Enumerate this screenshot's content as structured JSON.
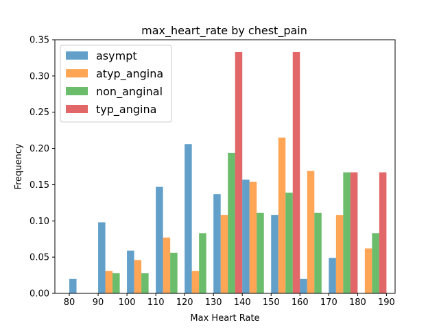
{
  "chart_data": {
    "type": "bar",
    "title": "max_heart_rate by chest_pain",
    "xlabel": "Max Heart Rate",
    "ylabel": "Frequency",
    "xlim": [
      75,
      193
    ],
    "ylim": [
      0,
      0.35
    ],
    "xticks": [
      80,
      90,
      100,
      110,
      120,
      130,
      140,
      150,
      160,
      170,
      180,
      190
    ],
    "yticks": [
      0.0,
      0.05,
      0.1,
      0.15,
      0.2,
      0.25,
      0.3,
      0.35
    ],
    "ytick_labels": [
      "0.00",
      "0.05",
      "0.10",
      "0.15",
      "0.20",
      "0.25",
      "0.30",
      "0.35"
    ],
    "bins": [
      [
        80,
        90
      ],
      [
        90,
        100
      ],
      [
        100,
        110
      ],
      [
        110,
        120
      ],
      [
        120,
        130
      ],
      [
        130,
        140
      ],
      [
        140,
        150
      ],
      [
        150,
        160
      ],
      [
        160,
        170
      ],
      [
        170,
        180
      ],
      [
        180,
        190
      ]
    ],
    "series": [
      {
        "name": "asympt",
        "color": "#1f77b4",
        "values": [
          0.02,
          0.098,
          0.059,
          0.147,
          0.206,
          0.137,
          0.157,
          0.108,
          0.02,
          0.049,
          0.0
        ]
      },
      {
        "name": "atyp_angina",
        "color": "#ff7f0e",
        "values": [
          0.0,
          0.031,
          0.046,
          0.077,
          0.031,
          0.108,
          0.154,
          0.215,
          0.169,
          0.108,
          0.062
        ]
      },
      {
        "name": "non_anginal",
        "color": "#2ca02c",
        "values": [
          0.0,
          0.028,
          0.028,
          0.056,
          0.083,
          0.194,
          0.111,
          0.139,
          0.111,
          0.167,
          0.083
        ]
      },
      {
        "name": "typ_angina",
        "color": "#d62728",
        "values": [
          0.0,
          0.0,
          0.0,
          0.0,
          0.0,
          0.333,
          0.0,
          0.333,
          0.0,
          0.167,
          0.167
        ]
      }
    ],
    "bar_opacity": 0.7,
    "grid": false,
    "legend_position": "top-left"
  }
}
